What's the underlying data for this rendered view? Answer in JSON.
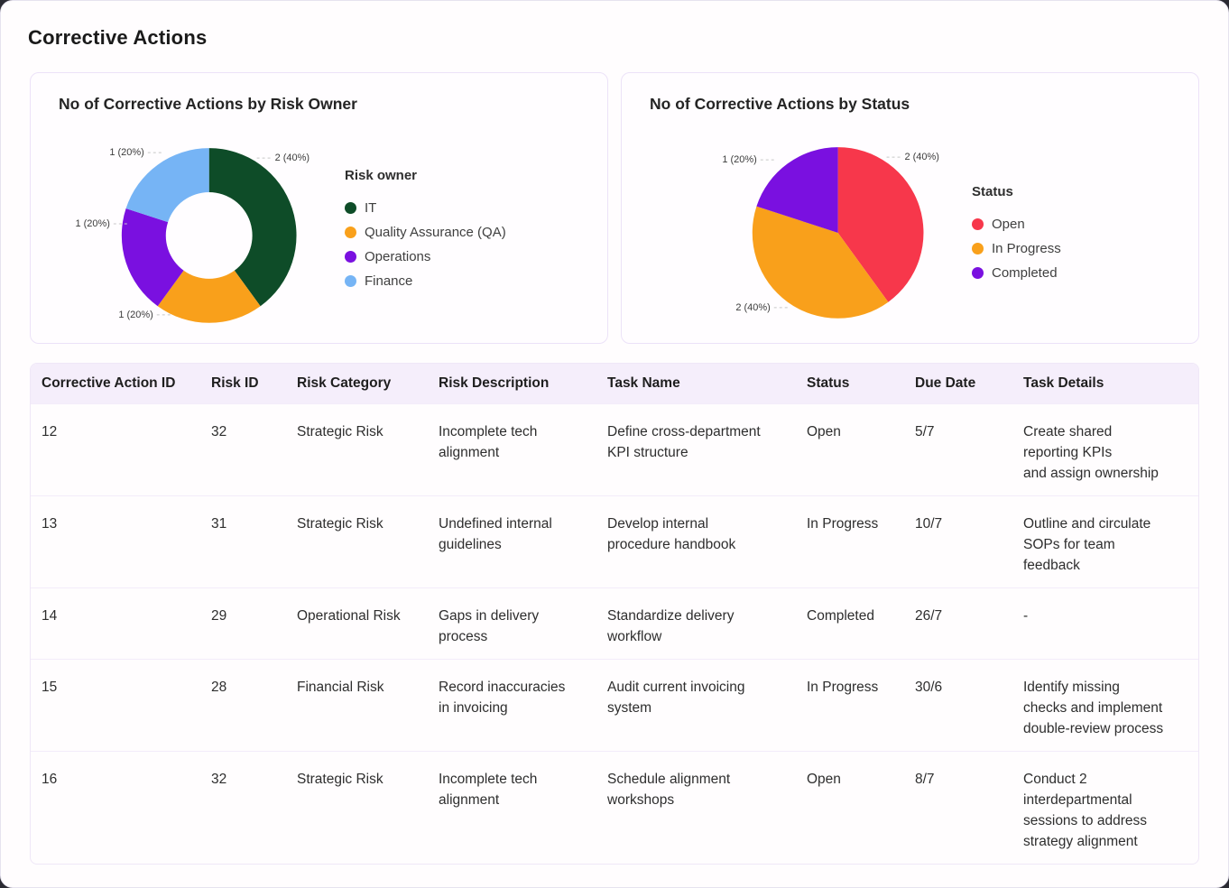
{
  "page": {
    "title": "Corrective Actions"
  },
  "chart_data": [
    {
      "type": "pie",
      "donut": true,
      "title": "No of Corrective Actions by Risk Owner",
      "legend_title": "Risk owner",
      "legend_position": "right",
      "labels": [
        "IT",
        "Quality Assurance (QA)",
        "Operations",
        "Finance"
      ],
      "values": [
        2,
        1,
        1,
        1
      ],
      "percentages": [
        40,
        20,
        20,
        20
      ],
      "slice_labels": [
        "2 (40%)",
        "1 (20%)",
        "1 (20%)",
        "1 (20%)"
      ],
      "colors": [
        "#0e4c28",
        "#f9a01b",
        "#7a10e0",
        "#76b4f5"
      ]
    },
    {
      "type": "pie",
      "donut": false,
      "title": "No of Corrective Actions by Status",
      "legend_title": "Status",
      "legend_position": "right",
      "labels": [
        "Open",
        "In Progress",
        "Completed"
      ],
      "values": [
        2,
        2,
        1
      ],
      "percentages": [
        40,
        40,
        20
      ],
      "slice_labels": [
        "2 (40%)",
        "2 (40%)",
        "1 (20%)"
      ],
      "colors": [
        "#f7374b",
        "#f9a01b",
        "#7a10e0"
      ]
    }
  ],
  "table": {
    "columns": [
      "Corrective Action ID",
      "Risk ID",
      "Risk Category",
      "Risk Description",
      "Task Name",
      "Status",
      "Due Date",
      "Task Details"
    ],
    "rows": [
      [
        "12",
        "32",
        "Strategic Risk",
        "Incomplete tech\nalignment",
        "Define cross-department\nKPI structure",
        "Open",
        "5/7",
        "Create shared\nreporting KPIs\nand assign ownership"
      ],
      [
        "13",
        "31",
        "Strategic Risk",
        "Undefined internal\nguidelines",
        "Develop internal\nprocedure handbook",
        "In Progress",
        "10/7",
        "Outline and circulate\nSOPs for team\nfeedback"
      ],
      [
        "14",
        "29",
        "Operational Risk",
        "Gaps in delivery\nprocess",
        "Standardize delivery\nworkflow",
        "Completed",
        "26/7",
        "-"
      ],
      [
        "15",
        "28",
        "Financial Risk",
        "Record inaccuracies\nin invoicing",
        "Audit current invoicing\nsystem",
        "In Progress",
        "30/6",
        "Identify missing\nchecks and implement\ndouble-review process"
      ],
      [
        "16",
        "32",
        "Strategic Risk",
        "Incomplete tech\nalignment",
        "Schedule alignment\nworkshops",
        "Open",
        "8/7",
        "Conduct 2\ninterdepartmental\nsessions to address\nstrategy alignment"
      ]
    ]
  }
}
